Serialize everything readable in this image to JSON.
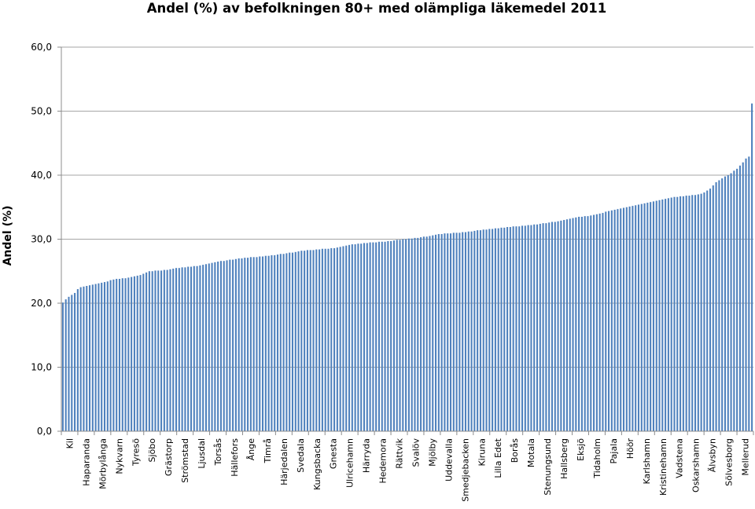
{
  "chart_data": {
    "type": "bar",
    "title": "Andel (%) av befolkningen 80+ med olämpliga läkemedel 2011",
    "ylabel": "Andel (%)",
    "xlabel": "",
    "ylim": [
      0,
      60
    ],
    "yticks": [
      "0,0",
      "10,0",
      "20,0",
      "30,0",
      "40,0",
      "50,0",
      "60,0"
    ],
    "grid": true,
    "legend": "none",
    "bar_color": "#4f81bd",
    "labeled_categories": [
      "Kil",
      "Haparanda",
      "Mörbylånga",
      "Nykvarn",
      "Tyresö",
      "Sjöbo",
      "Grästorp",
      "Strömstad",
      "Ljusdal",
      "Torsås",
      "Hällefors",
      "Ånge",
      "Timrå",
      "Härjedalen",
      "Svedala",
      "Kungsbacka",
      "Gnesta",
      "Ulricehamn",
      "Härryda",
      "Hedemora",
      "Rättvik",
      "Svalöv",
      "Mjölby",
      "Uddevalla",
      "Smedjebacken",
      "Kiruna",
      "Lilla Edet",
      "Borås",
      "Motala",
      "Stenungsund",
      "Hallsberg",
      "Eksjö",
      "Tidaholm",
      "Pajala",
      "Höör",
      "Karlshamn",
      "Kristinehamn",
      "Vadstena",
      "Oskarshamn",
      "Älvsbyn",
      "Sölvesborg",
      "Mellerud"
    ],
    "values": [
      20.1,
      20.6,
      21.0,
      21.3,
      21.6,
      22.2,
      22.5,
      22.6,
      22.7,
      22.8,
      22.9,
      23.0,
      23.1,
      23.2,
      23.3,
      23.4,
      23.6,
      23.7,
      23.8,
      23.8,
      23.9,
      23.9,
      24.0,
      24.1,
      24.2,
      24.3,
      24.4,
      24.6,
      24.8,
      25.0,
      25.0,
      25.1,
      25.1,
      25.1,
      25.2,
      25.2,
      25.3,
      25.4,
      25.5,
      25.5,
      25.6,
      25.6,
      25.7,
      25.7,
      25.8,
      25.8,
      25.9,
      26.0,
      26.1,
      26.2,
      26.3,
      26.4,
      26.5,
      26.6,
      26.6,
      26.7,
      26.8,
      26.8,
      26.9,
      27.0,
      27.0,
      27.1,
      27.1,
      27.2,
      27.2,
      27.2,
      27.3,
      27.3,
      27.4,
      27.4,
      27.5,
      27.5,
      27.6,
      27.7,
      27.7,
      27.8,
      27.9,
      27.9,
      28.0,
      28.1,
      28.2,
      28.2,
      28.3,
      28.3,
      28.3,
      28.4,
      28.4,
      28.5,
      28.5,
      28.5,
      28.6,
      28.6,
      28.7,
      28.8,
      28.9,
      29.0,
      29.1,
      29.2,
      29.2,
      29.3,
      29.3,
      29.4,
      29.4,
      29.5,
      29.5,
      29.5,
      29.6,
      29.6,
      29.6,
      29.7,
      29.7,
      29.8,
      29.9,
      29.9,
      30.0,
      30.0,
      30.1,
      30.1,
      30.2,
      30.2,
      30.3,
      30.4,
      30.4,
      30.5,
      30.6,
      30.7,
      30.8,
      30.8,
      30.9,
      30.9,
      30.9,
      31.0,
      31.0,
      31.0,
      31.1,
      31.1,
      31.2,
      31.2,
      31.3,
      31.4,
      31.4,
      31.5,
      31.5,
      31.6,
      31.6,
      31.7,
      31.7,
      31.8,
      31.8,
      31.9,
      31.9,
      32.0,
      32.0,
      32.0,
      32.1,
      32.1,
      32.2,
      32.2,
      32.3,
      32.3,
      32.4,
      32.5,
      32.5,
      32.6,
      32.7,
      32.7,
      32.8,
      32.9,
      33.0,
      33.1,
      33.2,
      33.3,
      33.4,
      33.5,
      33.5,
      33.6,
      33.6,
      33.7,
      33.8,
      33.9,
      34.0,
      34.1,
      34.3,
      34.4,
      34.5,
      34.6,
      34.7,
      34.8,
      34.9,
      35.0,
      35.1,
      35.2,
      35.3,
      35.4,
      35.5,
      35.6,
      35.7,
      35.8,
      35.9,
      36.0,
      36.1,
      36.2,
      36.3,
      36.4,
      36.5,
      36.6,
      36.6,
      36.7,
      36.7,
      36.8,
      36.8,
      36.9,
      36.9,
      37.0,
      37.1,
      37.3,
      37.6,
      37.9,
      38.4,
      38.9,
      39.2,
      39.5,
      39.8,
      40.0,
      40.3,
      40.7,
      41.0,
      41.5,
      42.0,
      42.6,
      42.9,
      51.2
    ]
  }
}
